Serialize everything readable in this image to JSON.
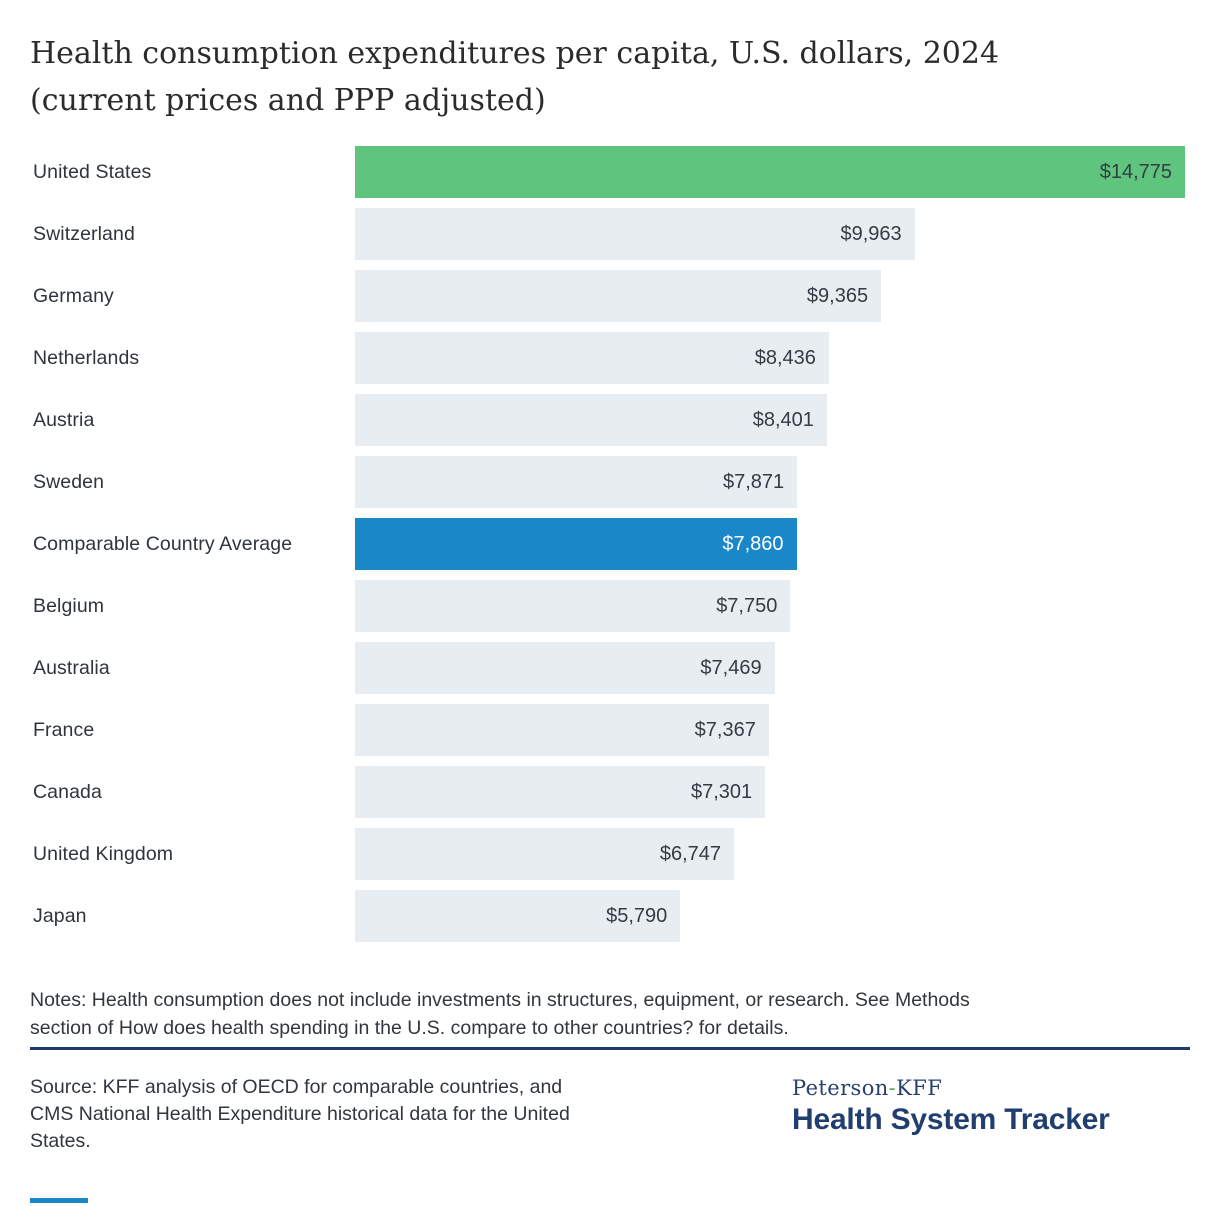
{
  "title": {
    "lines": [
      "Health consumption expenditures per capita, U.S. dollars, 2024",
      "(current prices and PPP adjusted)"
    ]
  },
  "chart_data": {
    "type": "bar",
    "orientation": "horizontal",
    "title": "Health consumption expenditures per capita, U.S. dollars, 2024 (current prices and PPP adjusted)",
    "categories": [
      "United States",
      "Switzerland",
      "Germany",
      "Netherlands",
      "Austria",
      "Sweden",
      "Comparable Country Average",
      "Belgium",
      "Australia",
      "France",
      "Canada",
      "United Kingdom",
      "Japan"
    ],
    "values": [
      14775,
      9963,
      9365,
      8436,
      8401,
      7871,
      7860,
      7750,
      7469,
      7367,
      7301,
      6747,
      5790
    ],
    "value_labels": [
      "$14,775",
      "$9,963",
      "$9,365",
      "$8,436",
      "$8,401",
      "$7,871",
      "$7,860",
      "$7,750",
      "$7,469",
      "$7,367",
      "$7,301",
      "$6,747",
      "$5,790"
    ],
    "xlim": [
      0,
      14775
    ],
    "grid": false,
    "legend": false,
    "bar_colors": [
      "#5fc57e",
      "#e8edf1",
      "#e8edf1",
      "#e8edf1",
      "#e8edf1",
      "#e8edf1",
      "#1a87c9",
      "#e8edf1",
      "#e8edf1",
      "#e8edf1",
      "#e8edf1",
      "#e8edf1",
      "#e8edf1"
    ],
    "value_label_colors": [
      "#333c44",
      "#333c44",
      "#333c44",
      "#333c44",
      "#333c44",
      "#333c44",
      "#ffffff",
      "#333c44",
      "#333c44",
      "#333c44",
      "#333c44",
      "#333c44",
      "#333c44"
    ]
  },
  "notes": {
    "lines": [
      "Notes: Health consumption does not include investments in structures, equipment, or research. See Methods",
      "section of How does health spending in the U.S. compare to other countries? for details."
    ]
  },
  "source": {
    "lines": [
      "Source: KFF analysis of OECD for comparable countries, and",
      "CMS National Health Expenditure historical data for the United",
      "States."
    ]
  },
  "logo": {
    "peterson": "Peterson",
    "hyphen": "-",
    "kff": "KFF",
    "tracker": "Health System Tracker"
  },
  "colors": {
    "us_bar_green": "#5fc57e",
    "average_bar_blue": "#1a87c9",
    "default_bar_gray": "#e8edf1",
    "divider_navy": "#1e3a6e",
    "logo_navy": "#203e70",
    "logo_hyphen_green": "#56a567",
    "bottom_accent_blue": "#1a87c9"
  }
}
